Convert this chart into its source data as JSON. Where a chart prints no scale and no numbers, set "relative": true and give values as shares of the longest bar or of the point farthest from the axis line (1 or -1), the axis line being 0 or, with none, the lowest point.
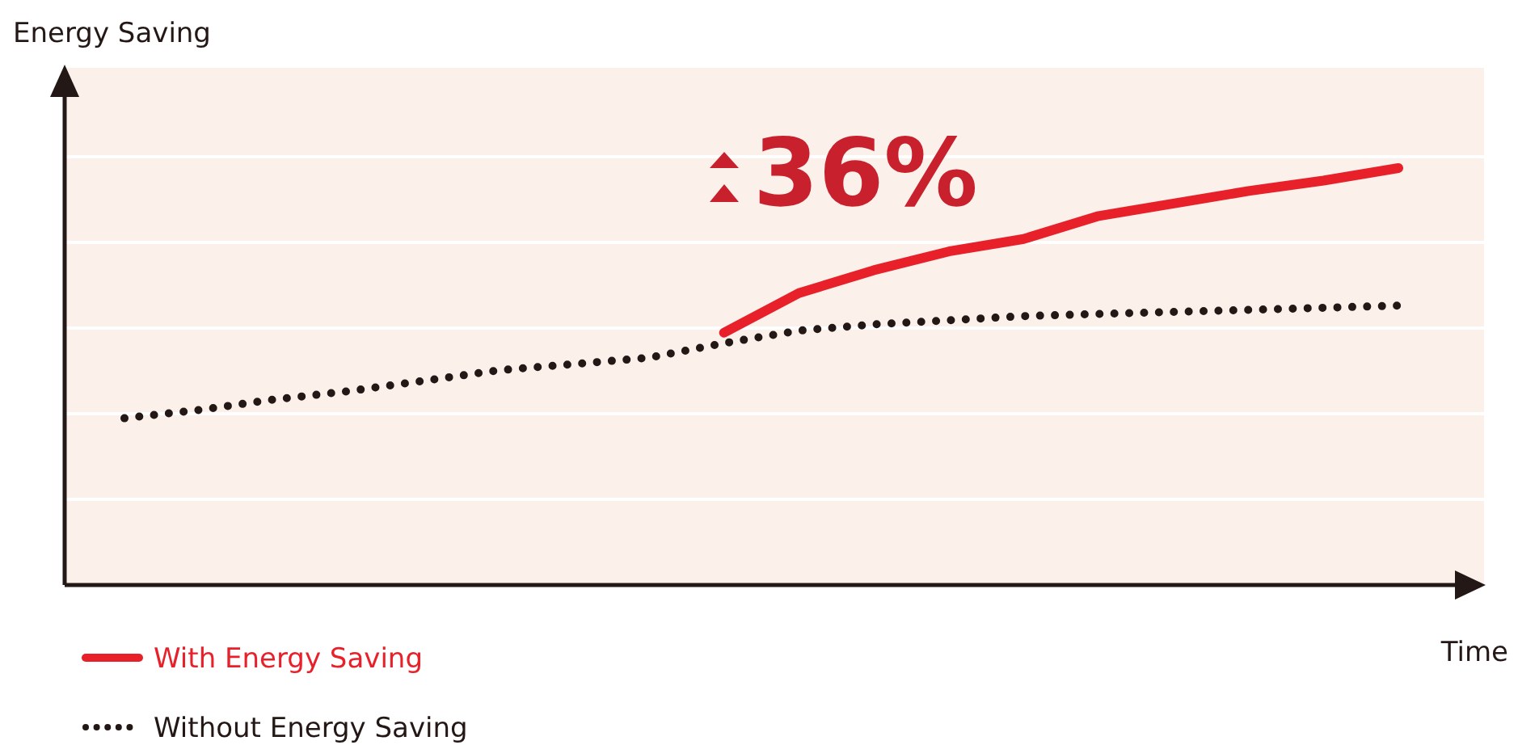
{
  "chart_data": {
    "type": "line",
    "xlabel": "Time",
    "ylabel": "Energy Saving",
    "relative": true,
    "grid": true,
    "legend": "bottom left",
    "categories": [
      null,
      null,
      null,
      null,
      null,
      null,
      null,
      null,
      null,
      null,
      null,
      null,
      null,
      null,
      null,
      null,
      null,
      null
    ],
    "series": [
      {
        "name": "With Energy Saving",
        "color": "#e8202a",
        "line_style": "solid",
        "values": [
          null,
          null,
          null,
          null,
          null,
          null,
          null,
          null,
          0.605,
          0.7,
          0.755,
          0.8,
          0.83,
          0.885,
          0.915,
          0.945,
          0.97,
          1.0
        ]
      },
      {
        "name": "Without Energy Saving",
        "color": "#231815",
        "line_style": "dotted",
        "values": [
          0.4,
          0.42,
          0.445,
          0.465,
          0.49,
          0.515,
          0.53,
          0.545,
          0.58,
          0.61,
          0.625,
          0.635,
          0.645,
          0.65,
          0.655,
          0.66,
          0.665,
          0.67
        ]
      }
    ],
    "annotations": [
      "36%"
    ]
  }
}
